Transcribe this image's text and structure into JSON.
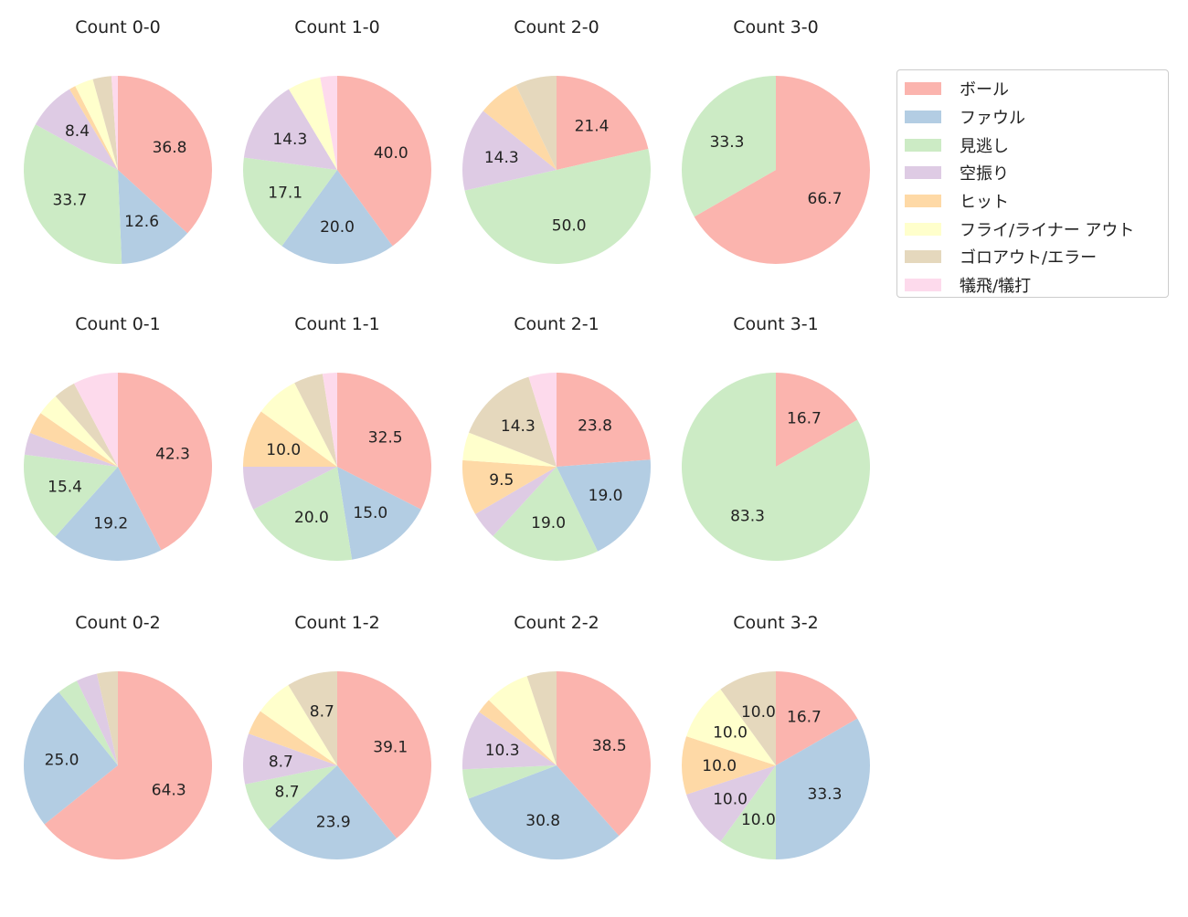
{
  "chart_data": {
    "type": "pie",
    "legend": {
      "placement": "top-right",
      "entries": [
        "ボール",
        "ファウル",
        "見逃し",
        "空振り",
        "ヒット",
        "フライ/ライナー アウト",
        "ゴロアウト/エラー",
        "犠飛/犠打"
      ]
    },
    "colors": [
      "#fbb4ae",
      "#b3cde3",
      "#ccebc5",
      "#decbe4",
      "#fed9a6",
      "#ffffcc",
      "#e5d8bd",
      "#fddaec"
    ],
    "start_angle": 90,
    "direction": "clockwise",
    "label_threshold_percent": 8,
    "charts": [
      {
        "title": "Count 0-0",
        "values": [
          36.8,
          12.6,
          33.7,
          8.4,
          1.1,
          3.2,
          3.2,
          1.1
        ]
      },
      {
        "title": "Count 1-0",
        "values": [
          40.0,
          20.0,
          17.1,
          14.3,
          0,
          5.7,
          0,
          2.9
        ]
      },
      {
        "title": "Count 2-0",
        "values": [
          21.4,
          0,
          50.0,
          14.3,
          7.1,
          0,
          7.1,
          0
        ]
      },
      {
        "title": "Count 3-0",
        "values": [
          66.7,
          0,
          33.3,
          0,
          0,
          0,
          0,
          0
        ]
      },
      {
        "title": "Count 0-1",
        "values": [
          42.3,
          19.2,
          15.4,
          3.8,
          3.8,
          3.8,
          3.8,
          7.7
        ]
      },
      {
        "title": "Count 1-1",
        "values": [
          32.5,
          15.0,
          20.0,
          7.5,
          10.0,
          7.5,
          5.0,
          2.5
        ]
      },
      {
        "title": "Count 2-1",
        "values": [
          23.8,
          19.0,
          19.0,
          4.8,
          9.5,
          4.8,
          14.3,
          4.8
        ]
      },
      {
        "title": "Count 3-1",
        "values": [
          16.7,
          0,
          83.3,
          0,
          0,
          0,
          0,
          0
        ]
      },
      {
        "title": "Count 0-2",
        "values": [
          64.3,
          25.0,
          3.6,
          3.6,
          0,
          0,
          3.6,
          0
        ]
      },
      {
        "title": "Count 1-2",
        "values": [
          39.1,
          23.9,
          8.7,
          8.7,
          4.3,
          6.5,
          8.7,
          0
        ]
      },
      {
        "title": "Count 2-2",
        "values": [
          38.5,
          30.8,
          5.1,
          10.3,
          2.6,
          7.7,
          5.1,
          0
        ]
      },
      {
        "title": "Count 3-2",
        "values": [
          16.7,
          33.3,
          10.0,
          10.0,
          10.0,
          10.0,
          10.0,
          0
        ]
      }
    ]
  }
}
